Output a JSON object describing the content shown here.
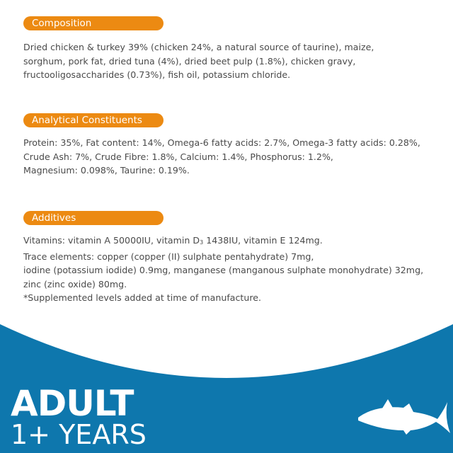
{
  "composition": {
    "title": "Composition",
    "lines": [
      "Dried chicken & turkey 39% (chicken 24%, a natural source of taurine), maize,",
      "sorghum, pork fat, dried tuna (4%), dried beet pulp (1.8%), chicken gravy,",
      "fructooligosaccharides (0.73%), fish oil, potassium chloride."
    ]
  },
  "analytical": {
    "title": "Analytical Constituents",
    "lines": [
      "Protein: 35%, Fat content: 14%, Omega-6 fatty acids: 2.7%, Omega-3 fatty acids: 0.28%,",
      "Crude Ash: 7%, Crude Fibre: 1.8%, Calcium: 1.4%, Phosphorus: 1.2%,",
      "Magnesium: 0.098%, Taurine: 0.19%."
    ]
  },
  "additives": {
    "title": "Additives",
    "vit_a": "Vitamins: vitamin A 50000IU, vitamin D",
    "vit_sub": "3",
    "vit_b": " 1438IU, vitamin E 124mg.",
    "lines": [
      "Trace elements: copper (copper (II) sulphate pentahydrate) 7mg,",
      "iodine (potassium iodide) 0.9mg, manganese (manganous sulphate monohydrate) 32mg,",
      "zinc (zinc oxide) 80mg.",
      "*Supplemented levels added at time of manufacture."
    ]
  },
  "banner": {
    "line1": "ADULT",
    "line2": "1+ YEARS",
    "icon": "tuna-fish-icon"
  },
  "colors": {
    "accent": "#ec8a12",
    "blue": "#0e77ad"
  }
}
